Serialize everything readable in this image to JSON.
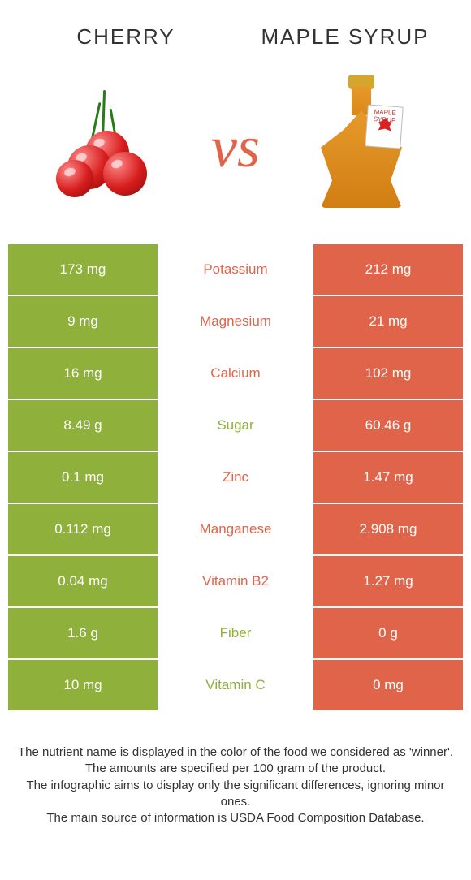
{
  "titles": {
    "left": "Cherry",
    "right": "Maple syrup"
  },
  "vs": "vs",
  "colors": {
    "cherry": "#8fb03b",
    "maple": "#e06449",
    "neutral": "#f0f0f0",
    "mid_text_cherry": "#8fb03b",
    "mid_text_maple": "#e06449"
  },
  "nutrients": [
    {
      "name": "Potassium",
      "left": "173 mg",
      "right": "212 mg",
      "winner": "maple"
    },
    {
      "name": "Magnesium",
      "left": "9 mg",
      "right": "21 mg",
      "winner": "maple"
    },
    {
      "name": "Calcium",
      "left": "16 mg",
      "right": "102 mg",
      "winner": "maple"
    },
    {
      "name": "Sugar",
      "left": "8.49 g",
      "right": "60.46 g",
      "winner": "cherry"
    },
    {
      "name": "Zinc",
      "left": "0.1 mg",
      "right": "1.47 mg",
      "winner": "maple"
    },
    {
      "name": "Manganese",
      "left": "0.112 mg",
      "right": "2.908 mg",
      "winner": "maple"
    },
    {
      "name": "Vitamin B2",
      "left": "0.04 mg",
      "right": "1.27 mg",
      "winner": "maple"
    },
    {
      "name": "Fiber",
      "left": "1.6 g",
      "right": "0 g",
      "winner": "cherry"
    },
    {
      "name": "Vitamin C",
      "left": "10 mg",
      "right": "0 mg",
      "winner": "cherry"
    }
  ],
  "footer": [
    "The nutrient name is displayed in the color of the food we considered as 'winner'.",
    "The amounts are specified per 100 gram of the product.",
    "The infographic aims to display only the significant differences, ignoring minor ones.",
    "The main source of information is USDA Food Composition Database."
  ],
  "tag_text": "MAPLE SYRUP"
}
